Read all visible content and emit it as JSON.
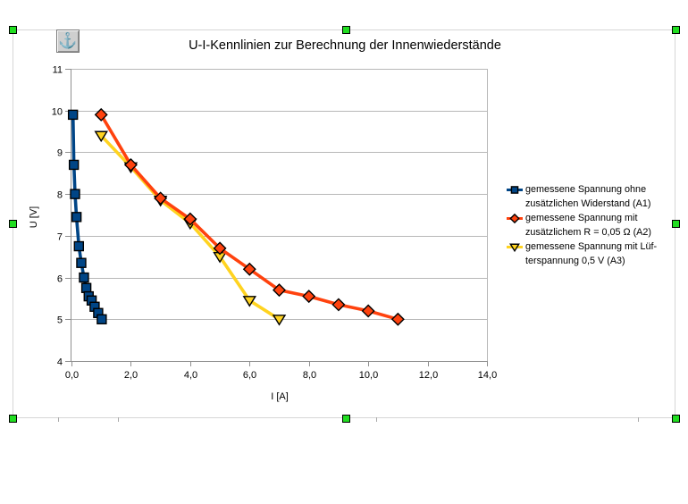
{
  "icons": {
    "anchor": "⚓"
  },
  "selection": {
    "handle_color": "#21dd21",
    "border_color": "#d6d6d6"
  },
  "colors": {
    "grid": "#b8b8b8",
    "axis": "#909090",
    "tick_label": "#000000",
    "marker_border": "#000000"
  },
  "chart_data": {
    "type": "line",
    "title": "U-I-Kennlinien zur Berechnung der Innenwiederstände",
    "xlabel": "I [A]",
    "ylabel": "U [V]",
    "xlim": [
      0,
      14
    ],
    "ylim": [
      4,
      11
    ],
    "x_tick_values": [
      0,
      2,
      4,
      6,
      8,
      10,
      12,
      14
    ],
    "x_tick_labels": [
      "0,0",
      "2,0",
      "4,0",
      "6,0",
      "8,0",
      "10,0",
      "12,0",
      "14,0"
    ],
    "y_tick_values": [
      4,
      5,
      6,
      7,
      8,
      9,
      10,
      11
    ],
    "y_tick_labels": [
      "4",
      "5",
      "6",
      "7",
      "8",
      "9",
      "10",
      "11"
    ],
    "grid": "horizontal",
    "legend_position": "right",
    "draw_order": [
      0,
      2,
      1
    ],
    "series": [
      {
        "name": "gemessene Spannung ohne zusätzlichen Widerstand (A1)",
        "legend_lines": [
          "gemessene Spannung ohne",
          "zusätzlichen Widerstand (A1)"
        ],
        "color": "#004586",
        "marker": "square",
        "points": [
          [
            0.05,
            9.9
          ],
          [
            0.08,
            8.7
          ],
          [
            0.12,
            8.0
          ],
          [
            0.17,
            7.45
          ],
          [
            0.25,
            6.75
          ],
          [
            0.33,
            6.35
          ],
          [
            0.42,
            6.0
          ],
          [
            0.5,
            5.75
          ],
          [
            0.58,
            5.55
          ],
          [
            0.68,
            5.45
          ],
          [
            0.78,
            5.3
          ],
          [
            0.9,
            5.15
          ],
          [
            1.02,
            5.0
          ]
        ]
      },
      {
        "name": "gemessene Spannung mit zusätzlichem R = 0,05 Ω (A2)",
        "legend_lines": [
          "gemessene Spannung mit",
          "zusätzlichem R = 0,05 Ω (A2)"
        ],
        "color": "#FF420E",
        "marker": "diamond",
        "points": [
          [
            1.0,
            9.9
          ],
          [
            2.0,
            8.7
          ],
          [
            3.0,
            7.9
          ],
          [
            4.0,
            7.4
          ],
          [
            5.0,
            6.7
          ],
          [
            6.0,
            6.2
          ],
          [
            7.0,
            5.7
          ],
          [
            8.0,
            5.55
          ],
          [
            9.0,
            5.35
          ],
          [
            10.0,
            5.2
          ],
          [
            11.0,
            5.0
          ]
        ]
      },
      {
        "name": "gemessene Spannung mit Lüfterspannung 0,5 V (A3)",
        "legend_lines": [
          "gemessene Spannung mit Lüf-",
          "terspannung 0,5 V (A3)"
        ],
        "color": "#FFD320",
        "marker": "triangle-down",
        "points": [
          [
            1.0,
            9.4
          ],
          [
            2.0,
            8.65
          ],
          [
            3.0,
            7.85
          ],
          [
            4.0,
            7.3
          ],
          [
            5.0,
            6.5
          ],
          [
            6.0,
            5.45
          ],
          [
            7.0,
            5.0
          ]
        ]
      }
    ]
  }
}
